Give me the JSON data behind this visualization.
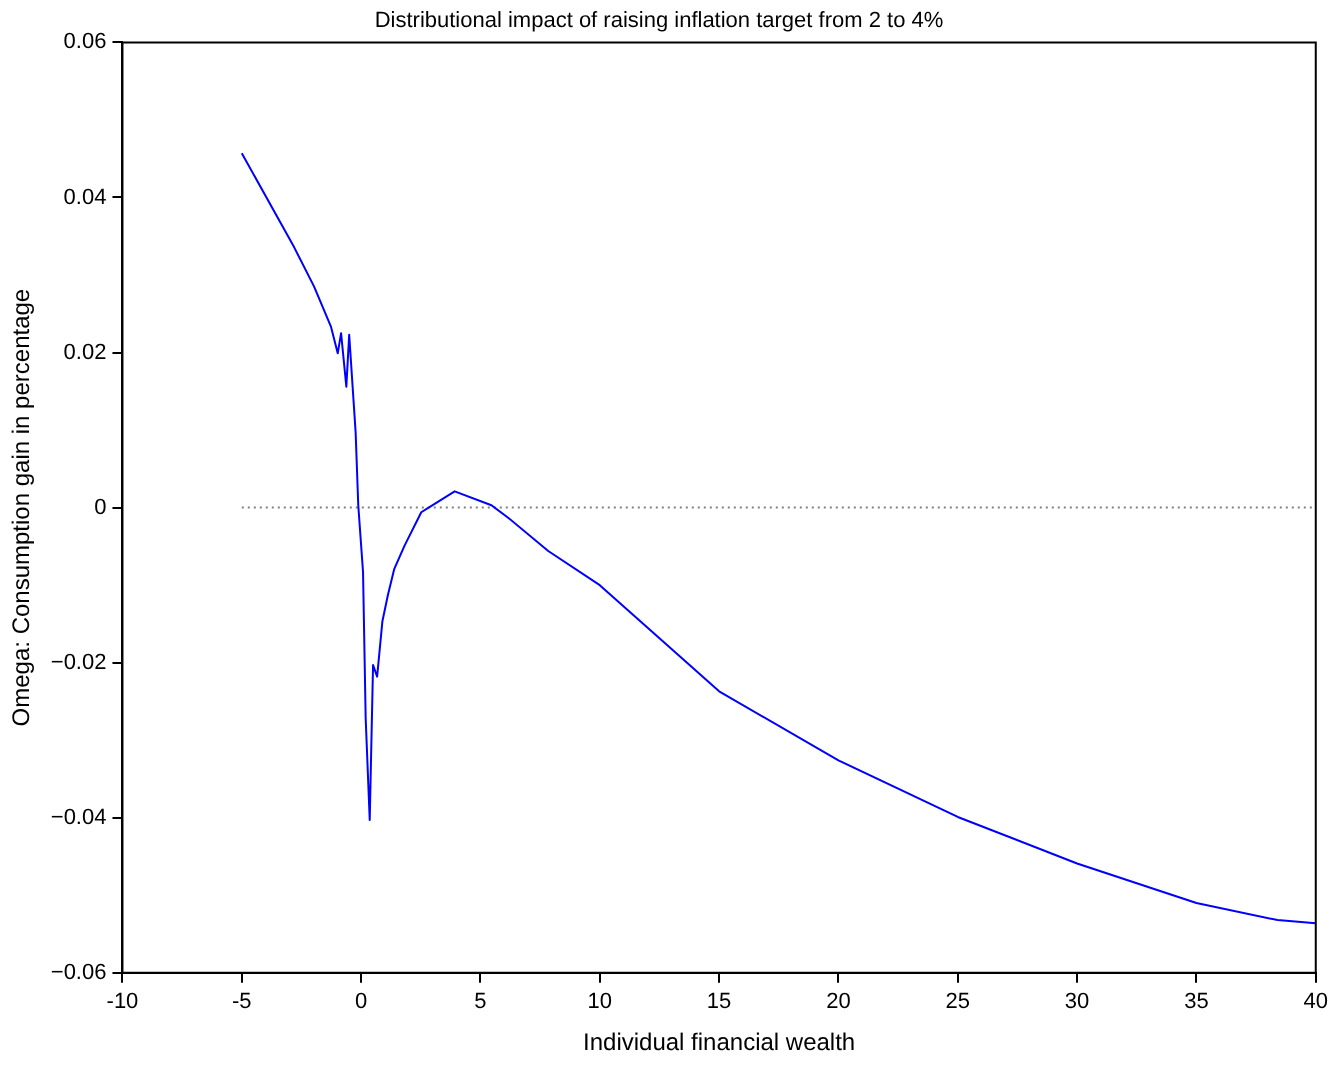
{
  "chart_data": {
    "type": "line",
    "title": "Distributional impact of raising inflation target from 2 to 4%",
    "xlabel": "Individual financial wealth",
    "ylabel": "Omega: Consumption gain in percentage",
    "xlim": [
      -10,
      40
    ],
    "xticks": [
      -10,
      -5,
      0,
      5,
      10,
      15,
      20,
      25,
      30,
      35,
      40
    ],
    "ylim": [
      -0.06,
      0.06
    ],
    "yticks": [
      {
        "value": -0.06,
        "label": "−0.06"
      },
      {
        "value": -0.04,
        "label": "−0.04"
      },
      {
        "value": -0.02,
        "label": "−0.02"
      },
      0,
      0.02,
      0.04,
      0.06
    ],
    "grid": false,
    "legend": false,
    "marker": "none",
    "series": [
      {
        "color": "#0000ff",
        "line_style": "solid",
        "x": [
          -5,
          -2.81,
          -1.97,
          -1.26,
          -0.98,
          -0.84,
          -0.62,
          -0.5,
          -0.23,
          -0.12,
          0.08,
          0.19,
          0.36,
          0.5,
          0.67,
          0.89,
          1.12,
          1.39,
          1.82,
          2.52,
          3.92,
          5.46,
          6.16,
          7.84,
          10,
          15,
          20,
          25,
          30,
          35,
          38.4,
          40
        ],
        "values": [
          0.0457,
          0.0336,
          0.0285,
          0.0233,
          0.0199,
          0.0225,
          0.0156,
          0.0223,
          0.0097,
          0.0003,
          -0.0083,
          -0.0271,
          -0.0403,
          -0.0203,
          -0.0218,
          -0.0147,
          -0.0113,
          -0.0079,
          -0.0049,
          -0.0006,
          0.0021,
          0.0003,
          -0.0013,
          -0.0056,
          -0.01,
          -0.0237,
          -0.0326,
          -0.0399,
          -0.0459,
          -0.051,
          -0.0532,
          -0.0536
        ]
      },
      {
        "color": "#808080",
        "line_style": "dotted",
        "x": [
          -5,
          40
        ],
        "values": [
          0,
          0
        ]
      }
    ]
  }
}
